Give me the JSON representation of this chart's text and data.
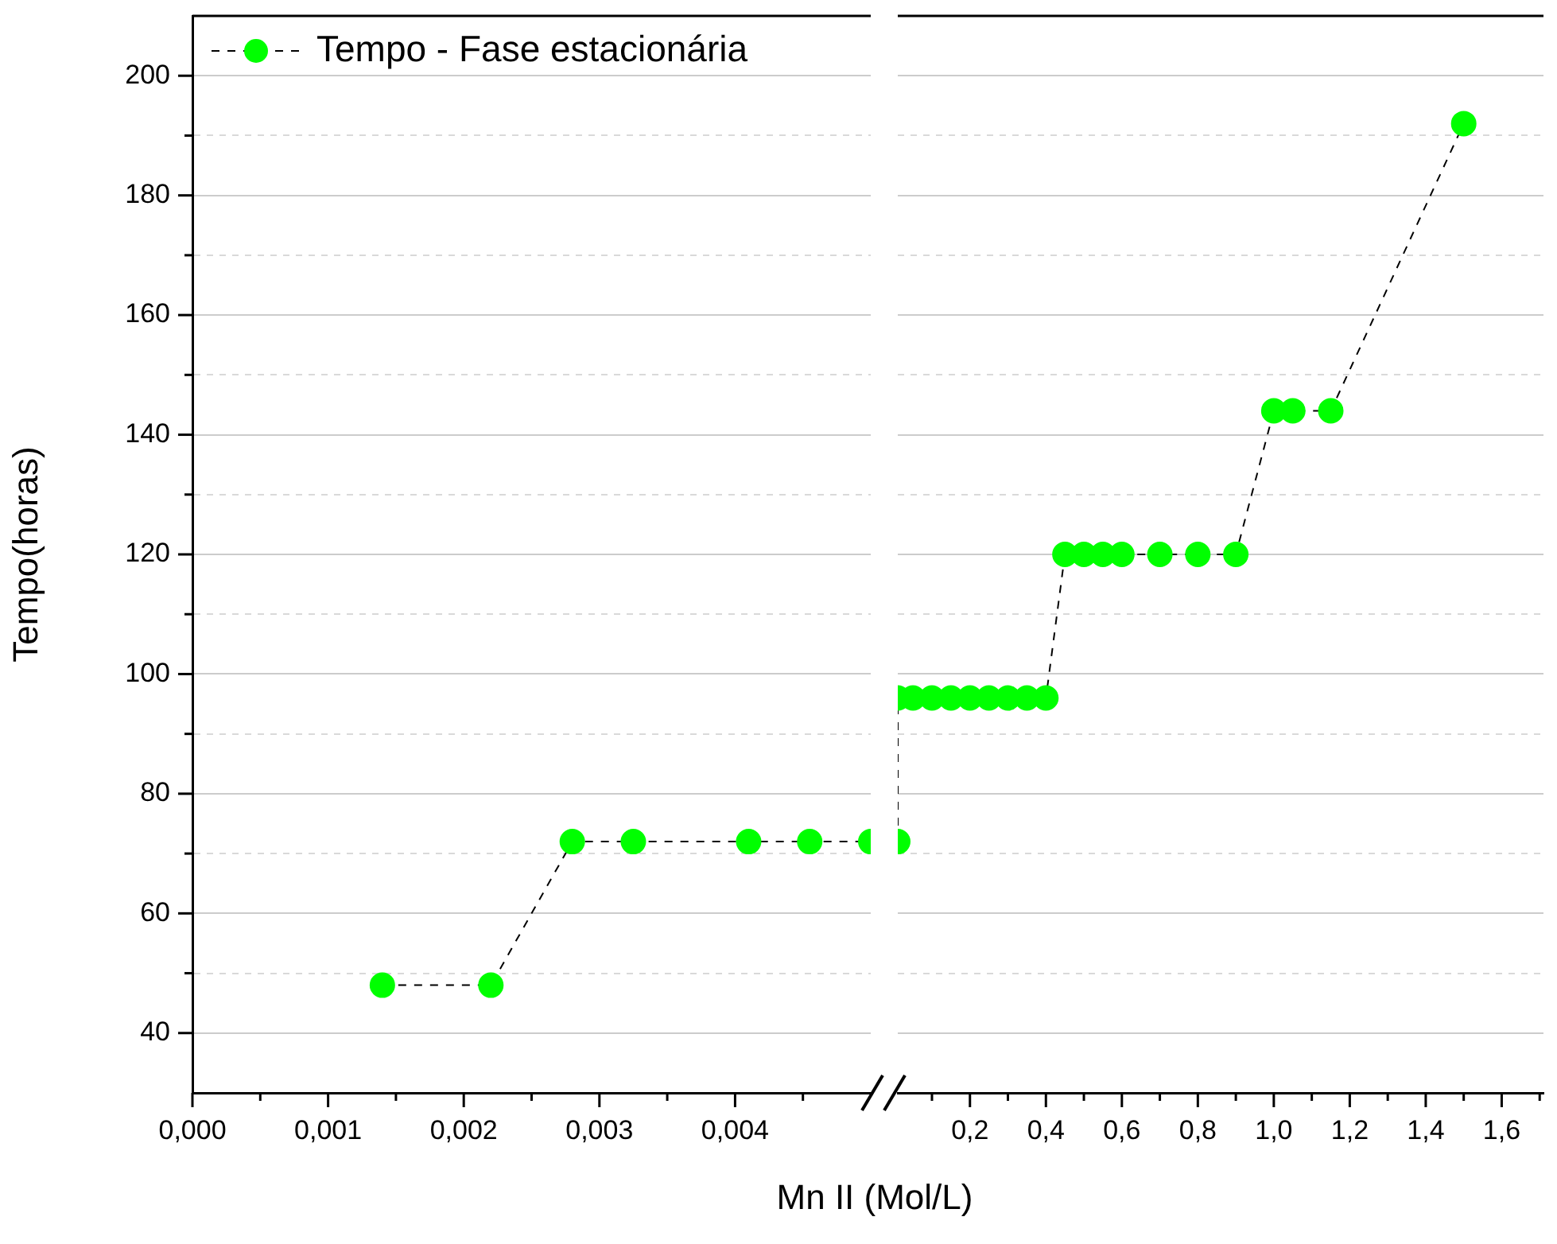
{
  "chart_data": [
    {
      "type": "line",
      "xlabel": "Mn II (Mol/L)",
      "ylabel": "Tempo(horas)",
      "legend": "top left",
      "grid": "y",
      "marker": "circle",
      "line_style": "dashed",
      "xlim": [
        0,
        0.005
      ],
      "xticks": [
        {
          "value": 0,
          "label": "0,000"
        },
        {
          "value": 0.0005,
          "label": null
        },
        {
          "value": 0.001,
          "label": "0,001"
        },
        {
          "value": 0.0015,
          "label": null
        },
        {
          "value": 0.002,
          "label": "0,002"
        },
        {
          "value": 0.0025,
          "label": null
        },
        {
          "value": 0.003,
          "label": "0,003"
        },
        {
          "value": 0.0035,
          "label": null
        },
        {
          "value": 0.004,
          "label": "0,004"
        },
        {
          "value": 0.0045,
          "label": null
        }
      ],
      "ylim": [
        30,
        210
      ],
      "yticks": [
        40,
        {
          "value": 50,
          "label": null
        },
        60,
        {
          "value": 70,
          "label": null
        },
        80,
        {
          "value": 90,
          "label": null
        },
        100,
        {
          "value": 110,
          "label": null
        },
        120,
        {
          "value": 130,
          "label": null
        },
        140,
        {
          "value": 150,
          "label": null
        },
        160,
        {
          "value": 170,
          "label": null
        },
        180,
        {
          "value": 190,
          "label": null
        },
        200
      ],
      "series": [
        {
          "name": "Tempo - Fase estacionária",
          "color": "#00ff00",
          "x": [
            0.0014,
            0.0022,
            0.0028,
            0.00325,
            0.0041,
            0.00455,
            0.005
          ],
          "values": [
            48,
            48,
            72,
            72,
            72,
            72,
            72
          ]
        }
      ]
    },
    {
      "type": "line",
      "grid": "y",
      "marker": "circle",
      "line_style": "dashed",
      "tick_labels": "x",
      "xlim": [
        0.01,
        1.71
      ],
      "xticks": [
        {
          "value": 0.1,
          "label": null
        },
        {
          "value": 0.2,
          "label": "0,2"
        },
        {
          "value": 0.3,
          "label": null
        },
        {
          "value": 0.4,
          "label": "0,4"
        },
        {
          "value": 0.5,
          "label": null
        },
        {
          "value": 0.6,
          "label": "0,6"
        },
        {
          "value": 0.7,
          "label": null
        },
        {
          "value": 0.8,
          "label": "0,8"
        },
        {
          "value": 0.9,
          "label": null
        },
        {
          "value": 1.0,
          "label": "1,0"
        },
        {
          "value": 1.1,
          "label": null
        },
        {
          "value": 1.2,
          "label": "1,2"
        },
        {
          "value": 1.3,
          "label": null
        },
        {
          "value": 1.4,
          "label": "1,4"
        },
        {
          "value": 1.5,
          "label": null
        },
        {
          "value": 1.6,
          "label": "1,6"
        },
        {
          "value": 1.7,
          "label": null
        }
      ],
      "ylim": [
        30,
        210
      ],
      "yticks": [
        40,
        {
          "value": 50,
          "label": null
        },
        60,
        {
          "value": 70,
          "label": null
        },
        80,
        {
          "value": 90,
          "label": null
        },
        100,
        {
          "value": 110,
          "label": null
        },
        120,
        {
          "value": 130,
          "label": null
        },
        140,
        {
          "value": 150,
          "label": null
        },
        160,
        {
          "value": 170,
          "label": null
        },
        180,
        {
          "value": 190,
          "label": null
        },
        200
      ],
      "series": [
        {
          "color": "#00ff00",
          "x": [
            0.01,
            0.01,
            0.05,
            0.1,
            0.15,
            0.2,
            0.25,
            0.3,
            0.35,
            0.4,
            0.45,
            0.5,
            0.55,
            0.6,
            0.7,
            0.8,
            0.9,
            1.0,
            1.05,
            1.15,
            1.5
          ],
          "values": [
            72,
            96,
            96,
            96,
            96,
            96,
            96,
            96,
            96,
            96,
            120,
            120,
            120,
            120,
            120,
            120,
            120,
            144,
            144,
            144,
            192
          ]
        }
      ]
    }
  ]
}
